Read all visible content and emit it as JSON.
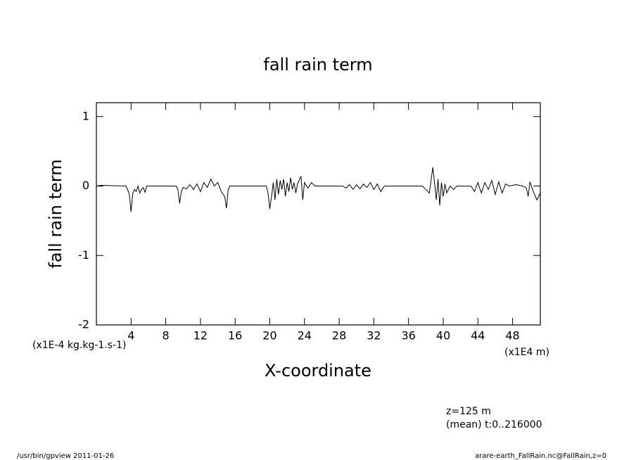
{
  "chart_data": {
    "type": "line",
    "title": "fall rain term",
    "ylabel": "fall rain term",
    "xlabel": "X-coordinate",
    "yunit": "(x1E-4 kg.kg-1.s-1)",
    "xunit": "(x1E4 m)",
    "annotations": [
      "z=125 m",
      "(mean) t:0..216000"
    ],
    "footer_left": "/usr/bin/gpview  2011-01-26",
    "footer_right": "arare-earth_FallRain.nc@FallRain,z=0",
    "xlim": [
      0,
      51.2
    ],
    "ylim": [
      -2,
      1.2
    ],
    "xticks": [
      4,
      8,
      12,
      16,
      20,
      24,
      28,
      32,
      36,
      40,
      44,
      48
    ],
    "yticks": [
      -2,
      -1,
      0,
      1
    ],
    "color": "#000000",
    "x": [
      0,
      0.5,
      3.4,
      3.6,
      3.8,
      4.0,
      4.2,
      4.4,
      4.6,
      4.8,
      5.0,
      5.2,
      5.4,
      5.6,
      5.8,
      6.2,
      9.2,
      9.4,
      9.6,
      9.8,
      10.0,
      10.4,
      10.8,
      11.2,
      11.6,
      12.0,
      12.4,
      12.8,
      13.2,
      13.6,
      14.0,
      14.4,
      14.8,
      15.0,
      15.2,
      15.4,
      19.6,
      19.8,
      20.0,
      20.2,
      20.4,
      20.6,
      20.8,
      21.0,
      21.2,
      21.4,
      21.6,
      21.8,
      22.0,
      22.2,
      22.4,
      22.6,
      22.8,
      23.0,
      23.2,
      23.6,
      23.8,
      24.0,
      24.4,
      24.8,
      25.2,
      28.4,
      28.8,
      29.2,
      29.6,
      30.0,
      30.4,
      30.8,
      31.2,
      31.6,
      32.0,
      32.4,
      32.8,
      33.2,
      33.6,
      37.6,
      38.0,
      38.4,
      38.8,
      39.0,
      39.2,
      39.4,
      39.6,
      39.8,
      40.0,
      40.2,
      40.4,
      40.8,
      41.2,
      41.6,
      43.2,
      43.6,
      44.0,
      44.4,
      44.8,
      45.2,
      45.6,
      46.0,
      46.4,
      46.8,
      47.2,
      47.6,
      48.4,
      49.2,
      49.6,
      49.8,
      50.0,
      50.4,
      50.8,
      51.2
    ],
    "values": [
      0,
      0.01,
      0,
      -0.05,
      -0.12,
      -0.37,
      -0.1,
      -0.05,
      -0.08,
      0,
      -0.1,
      -0.05,
      -0.02,
      -0.09,
      0,
      0,
      0,
      -0.05,
      -0.25,
      -0.08,
      -0.02,
      -0.04,
      0.02,
      -0.05,
      0.03,
      -0.08,
      0.05,
      -0.02,
      0.1,
      0,
      0.05,
      -0.08,
      -0.15,
      -0.32,
      -0.05,
      0,
      0,
      -0.1,
      -0.33,
      -0.15,
      0.05,
      -0.2,
      0.1,
      -0.12,
      0.08,
      -0.05,
      0.1,
      -0.15,
      0.05,
      -0.08,
      0.12,
      -0.05,
      0.05,
      -0.1,
      0.03,
      0.14,
      -0.2,
      0.05,
      -0.03,
      0.05,
      0,
      0,
      -0.03,
      0.02,
      -0.05,
      0.02,
      -0.04,
      0.03,
      -0.02,
      0.05,
      -0.05,
      0.03,
      -0.08,
      0,
      0,
      0,
      -0.05,
      -0.1,
      0.27,
      0.05,
      -0.2,
      0.1,
      -0.28,
      0.05,
      -0.15,
      0.03,
      -0.1,
      0,
      -0.05,
      0,
      0,
      -0.08,
      0.05,
      -0.1,
      0.05,
      -0.05,
      0.08,
      -0.12,
      0.06,
      -0.1,
      0.03,
      0,
      0.02,
      0,
      -0.03,
      -0.15,
      0.06,
      -0.08,
      -0.2,
      -0.1
    ]
  }
}
